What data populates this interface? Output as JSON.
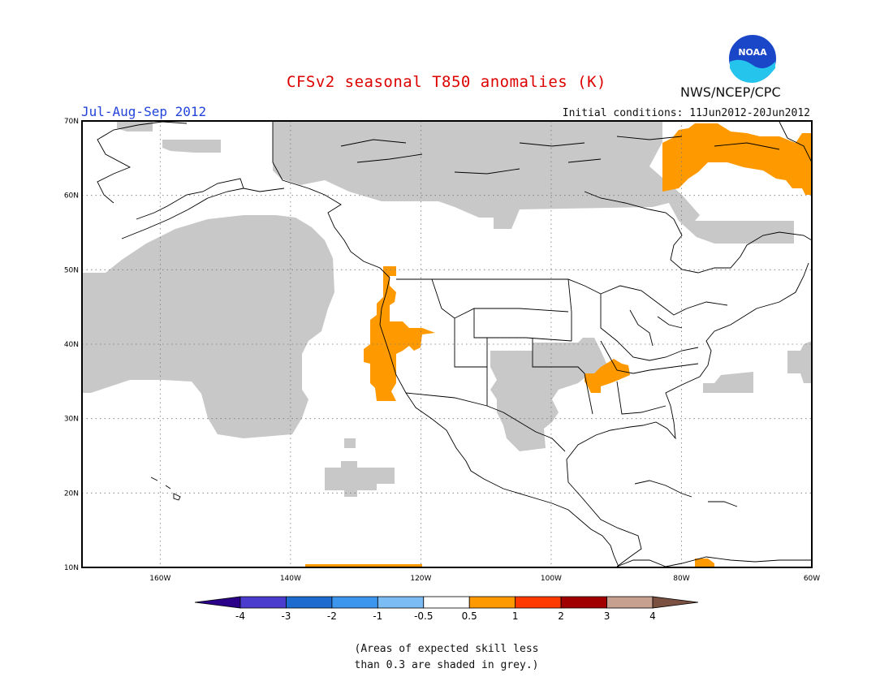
{
  "header": {
    "title": "CFSv2 seasonal T850 anomalies (K)",
    "period": "Jul-Aug-Sep 2012",
    "initial_conditions": "Initial conditions: 11Jun2012-20Jun2012",
    "agency": "NWS/NCEP/CPC",
    "logo_text": "NOAA"
  },
  "map": {
    "lon_range": [
      -172,
      -60
    ],
    "lat_range": [
      10,
      70
    ],
    "lat_labels": [
      "70N",
      "60N",
      "50N",
      "40N",
      "30N",
      "20N",
      "10N"
    ],
    "lon_labels": [
      "160W",
      "140W",
      "120W",
      "100W",
      "80W",
      "60W"
    ],
    "colors": {
      "grey": "#c8c8c8",
      "warm": "#ff9900",
      "coast": "#000000",
      "grid": "#777777"
    }
  },
  "colorbar": {
    "labels": [
      "-4",
      "-3",
      "-2",
      "-1",
      "-0.5",
      "0.5",
      "1",
      "2",
      "3",
      "4"
    ],
    "colors": [
      "#2a0088",
      "#4a3ccc",
      "#1e6bd0",
      "#3c96ee",
      "#7cbcf4",
      "#ffffff",
      "#ff9900",
      "#ff3a00",
      "#a00000",
      "#c8a090",
      "#7a5040"
    ]
  },
  "note": {
    "line1": "(Areas of expected skill less",
    "line2": "than 0.3 are shaded in grey.)"
  }
}
